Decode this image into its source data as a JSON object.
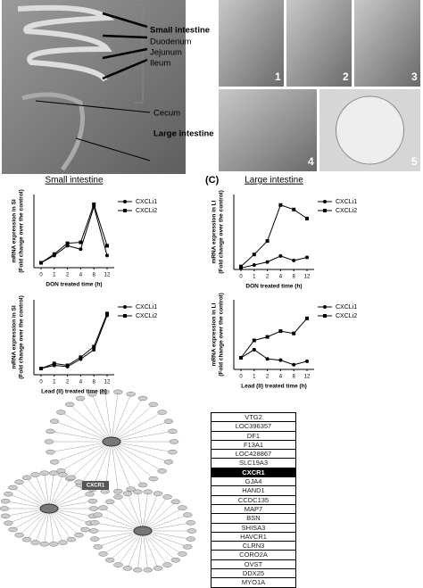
{
  "photo_labels": {
    "small_intestine": "Small intestine",
    "segments": [
      "Duodenum",
      "Jejunum",
      "Ileum"
    ],
    "cecum": "Cecum",
    "large_intestine": "Large intestine",
    "steps": [
      "1",
      "2",
      "3",
      "4",
      "5"
    ]
  },
  "chart_data": [
    {
      "type": "line",
      "title": "Small intestine",
      "ylabel": [
        "mRNA expression in SI",
        "(Fold change over the control)"
      ],
      "xlabel": "DON treated time (h)",
      "categories": [
        "0",
        "1",
        "2",
        "4",
        "8",
        "12"
      ],
      "ylim": [
        0,
        15
      ],
      "series": [
        {
          "name": "CXCLi1",
          "color": "#000000",
          "marker": "circle",
          "values": [
            1,
            2.5,
            4.5,
            3.8,
            12.5,
            2.5
          ]
        },
        {
          "name": "CXCLi2",
          "color": "#000000",
          "marker": "square",
          "values": [
            1,
            2.8,
            5,
            5.2,
            13,
            4.5
          ]
        }
      ]
    },
    {
      "type": "line",
      "ylabel": [
        "mRNA expression in SI",
        "(Fold change over the control)"
      ],
      "xlabel": "Lead (II) treated time (h)",
      "categories": [
        "0",
        "1",
        "2",
        "4",
        "8",
        "12"
      ],
      "ylim": [
        0,
        12
      ],
      "series": [
        {
          "name": "CXCLi1",
          "color": "#000000",
          "marker": "circle",
          "values": [
            1,
            1.5,
            1.3,
            2.5,
            4,
            9.5
          ]
        },
        {
          "name": "CXCLi2",
          "color": "#000000",
          "marker": "square",
          "values": [
            1,
            1.8,
            1.5,
            2.8,
            4.5,
            9.8
          ]
        }
      ]
    },
    {
      "type": "line",
      "panel": "(C)",
      "title": "Large intestine",
      "ylabel": [
        "mRNA expression in LI",
        "(Fold change over the control)"
      ],
      "xlabel": "DON treated time (h)",
      "categories": [
        "0",
        "1",
        "2",
        "4",
        "8",
        "12"
      ],
      "ylim": [
        0,
        25
      ],
      "series": [
        {
          "name": "CXCLi1",
          "color": "#000000",
          "marker": "circle",
          "values": [
            0.5,
            1.5,
            2.5,
            4.5,
            3,
            4
          ]
        },
        {
          "name": "CXCLi2",
          "color": "#000000",
          "marker": "square",
          "values": [
            1,
            5,
            9.5,
            21.5,
            20,
            17
          ]
        }
      ]
    },
    {
      "type": "line",
      "ylabel": [
        "mRNA expression in LI",
        "(Fold change over the control)"
      ],
      "xlabel": "Lead (II) treated time (h)",
      "categories": [
        "0",
        "1",
        "2",
        "4",
        "8",
        "12"
      ],
      "ylim": [
        0,
        6
      ],
      "series": [
        {
          "name": "CXCLi1",
          "color": "#000000",
          "marker": "circle",
          "values": [
            1,
            1.7,
            0.9,
            0.8,
            0.4,
            0.7
          ]
        },
        {
          "name": "CXCLi2",
          "color": "#000000",
          "marker": "square",
          "values": [
            1,
            2.5,
            2.8,
            3.3,
            3.1,
            4.4
          ]
        }
      ]
    }
  ],
  "network": {
    "hub": "CXCR1"
  },
  "gene_list": [
    {
      "name": "VTG2"
    },
    {
      "name": "LOC396357"
    },
    {
      "name": "DF1"
    },
    {
      "name": "F13A1"
    },
    {
      "name": "LOC428867"
    },
    {
      "name": "SLC19A3"
    },
    {
      "name": "CXCR1",
      "highlighted": true
    },
    {
      "name": "GJA4"
    },
    {
      "name": "HAND1"
    },
    {
      "name": "CCDC135"
    },
    {
      "name": "MAP7"
    },
    {
      "name": "BSN"
    },
    {
      "name": "SHISA3"
    },
    {
      "name": "HAVCR1"
    },
    {
      "name": "CLRN3"
    },
    {
      "name": "CORO2A"
    },
    {
      "name": "OVST"
    },
    {
      "name": "DDX25"
    },
    {
      "name": "MYO1A"
    }
  ]
}
